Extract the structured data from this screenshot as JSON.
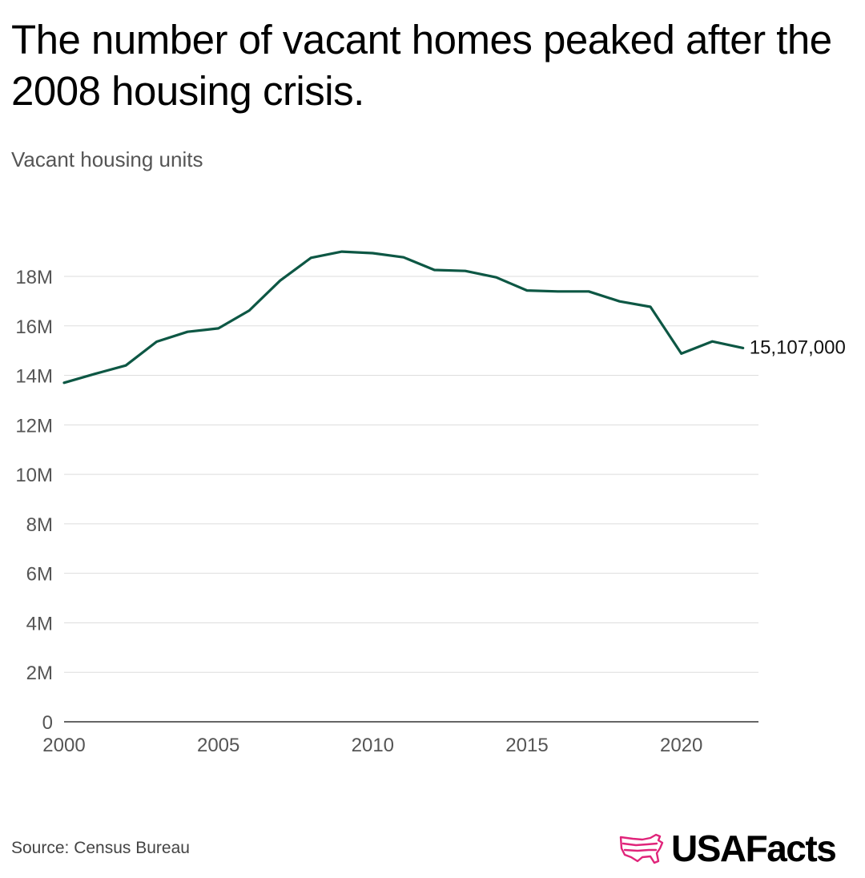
{
  "header": {
    "title": "The number of vacant homes peaked after the 2008 housing crisis.",
    "subtitle": "Vacant housing units"
  },
  "footer": {
    "source": "Source: Census Bureau",
    "brand": "USAFacts"
  },
  "colors": {
    "line": "#0d5744",
    "grid": "#dddddd",
    "tick_text": "#555555",
    "brand_accent": "#e0247a"
  },
  "chart_data": {
    "type": "line",
    "title": "The number of vacant homes peaked after the 2008 housing crisis.",
    "ylabel": "Vacant housing units",
    "xlabel": "",
    "x": [
      2000,
      2001,
      2002,
      2003,
      2004,
      2005,
      2006,
      2007,
      2008,
      2009,
      2010,
      2011,
      2012,
      2013,
      2014,
      2015,
      2016,
      2017,
      2018,
      2019,
      2020,
      2021,
      2022
    ],
    "series": [
      {
        "name": "Vacant housing units",
        "values": [
          13700000,
          14060000,
          14400000,
          15360000,
          15760000,
          15900000,
          16620000,
          17830000,
          18750000,
          19000000,
          18940000,
          18770000,
          18260000,
          18220000,
          17960000,
          17430000,
          17390000,
          17390000,
          16990000,
          16770000,
          14880000,
          15370000,
          15107000
        ]
      }
    ],
    "ylim": [
      0,
      18000000
    ],
    "xlim": [
      2000,
      2022.5
    ],
    "yticks": [
      0,
      2000000,
      4000000,
      6000000,
      8000000,
      10000000,
      12000000,
      14000000,
      16000000,
      18000000
    ],
    "ytick_labels": [
      "0",
      "2M",
      "4M",
      "6M",
      "8M",
      "10M",
      "12M",
      "14M",
      "16M",
      "18M"
    ],
    "xticks": [
      2000,
      2005,
      2010,
      2015,
      2020
    ],
    "xtick_labels": [
      "2000",
      "2005",
      "2010",
      "2015",
      "2020"
    ],
    "end_label": "15,107,000",
    "grid": true
  }
}
